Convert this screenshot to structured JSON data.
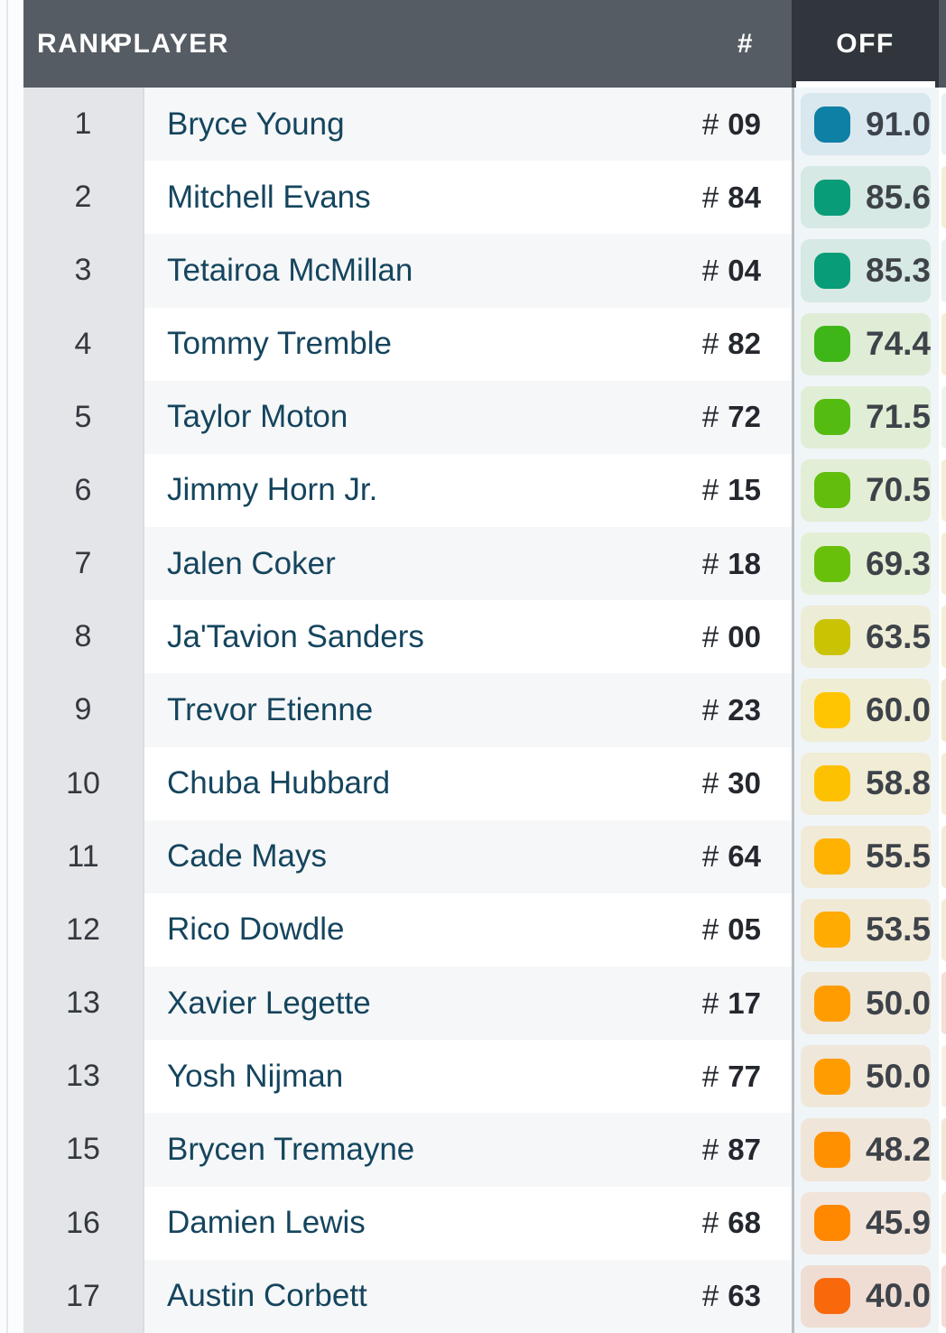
{
  "table": {
    "headers": {
      "rank": "RANK",
      "player": "PLAYER",
      "jersey": "#",
      "off": "OFF"
    },
    "jersey_prefix": "#",
    "sorted_column": "OFF",
    "rows": [
      {
        "rank": "1",
        "player": "Bryce Young",
        "jersey": "09",
        "off": "91.0",
        "badge_color": "#0e7fa5",
        "pill_tint": "#d9e8ef",
        "next_tint": "#e9f0f5"
      },
      {
        "rank": "2",
        "player": "Mitchell Evans",
        "jersey": "84",
        "off": "85.6",
        "badge_color": "#099c78",
        "pill_tint": "#d7e9e4",
        "next_tint": "#f2eed8"
      },
      {
        "rank": "3",
        "player": "Tetairoa McMillan",
        "jersey": "04",
        "off": "85.3",
        "badge_color": "#099c78",
        "pill_tint": "#d7e9e4",
        "next_tint": "#ebf1f4"
      },
      {
        "rank": "4",
        "player": "Tommy Tremble",
        "jersey": "82",
        "off": "74.4",
        "badge_color": "#3eb617",
        "pill_tint": "#dfedd7",
        "next_tint": "#f3eed6"
      },
      {
        "rank": "5",
        "player": "Taylor Moton",
        "jersey": "72",
        "off": "71.5",
        "badge_color": "#54bb10",
        "pill_tint": "#e1eed6",
        "next_tint": "#eef3ef"
      },
      {
        "rank": "6",
        "player": "Jimmy Horn Jr.",
        "jersey": "15",
        "off": "70.5",
        "badge_color": "#61be0d",
        "pill_tint": "#e2eed5",
        "next_tint": "#f3eed6"
      },
      {
        "rank": "7",
        "player": "Jalen Coker",
        "jersey": "18",
        "off": "69.3",
        "badge_color": "#69c00b",
        "pill_tint": "#e3efd5",
        "next_tint": "#f3eed6"
      },
      {
        "rank": "8",
        "player": "Ja'Tavion Sanders",
        "jersey": "00",
        "off": "63.5",
        "badge_color": "#c9c304",
        "pill_tint": "#edecd6",
        "next_tint": "#f3eed6"
      },
      {
        "rank": "9",
        "player": "Trevor Etienne",
        "jersey": "23",
        "off": "60.0",
        "badge_color": "#ffc502",
        "pill_tint": "#f0edd5",
        "next_tint": "#f0e9d0"
      },
      {
        "rank": "10",
        "player": "Chuba Hubbard",
        "jersey": "30",
        "off": "58.8",
        "badge_color": "#fec102",
        "pill_tint": "#f0ecd5",
        "next_tint": "#f3edd8"
      },
      {
        "rank": "11",
        "player": "Cade Mays",
        "jersey": "64",
        "off": "55.5",
        "badge_color": "#ffb201",
        "pill_tint": "#f0ead6",
        "next_tint": "#f2ecd7"
      },
      {
        "rank": "12",
        "player": "Rico Dowdle",
        "jersey": "05",
        "off": "53.5",
        "badge_color": "#ffab01",
        "pill_tint": "#f0e9d6",
        "next_tint": "#f2ecd7"
      },
      {
        "rank": "13",
        "player": "Xavier Legette",
        "jersey": "17",
        "off": "50.0",
        "badge_color": "#ff9d00",
        "pill_tint": "#eee7d8",
        "next_tint": "#f4dfd4"
      },
      {
        "rank": "13",
        "player": "Yosh Nijman",
        "jersey": "77",
        "off": "50.0",
        "badge_color": "#ff9d00",
        "pill_tint": "#efe8da",
        "next_tint": "#f6f1e3"
      },
      {
        "rank": "15",
        "player": "Brycen Tremayne",
        "jersey": "87",
        "off": "48.2",
        "badge_color": "#ff9100",
        "pill_tint": "#efe5d9",
        "next_tint": "#f2e7d6"
      },
      {
        "rank": "16",
        "player": "Damien Lewis",
        "jersey": "68",
        "off": "45.9",
        "badge_color": "#ff8800",
        "pill_tint": "#f1e4da",
        "next_tint": "#f5f0e3"
      },
      {
        "rank": "17",
        "player": "Austin Corbett",
        "jersey": "63",
        "off": "40.0",
        "badge_color": "#f9690c",
        "pill_tint": "#efddd3",
        "next_tint": "#f3dcd5"
      }
    ]
  },
  "colors": {
    "header_bg": "#565c63",
    "sorted_header_bg": "#31363c",
    "sort_indicator": "#ffffff",
    "next_header_bg": "#51575e",
    "rank_column_bg": "#e3e5e9",
    "row_stripe": "#f6f7f8",
    "row_white": "#ffffff",
    "off_column_bg": "#f0f5f8",
    "column_separator": "#b9bec5",
    "player_text": "#15455e",
    "rank_text": "#33383f",
    "jersey_text": "#24282e",
    "grade_text": "#3e434a",
    "header_text": "#ffffff"
  }
}
